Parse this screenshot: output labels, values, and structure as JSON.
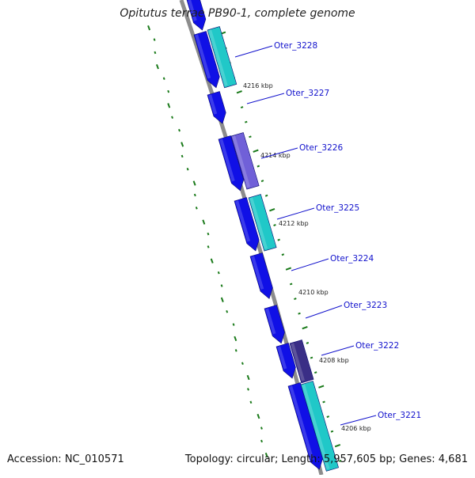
{
  "title": "Opitutus terrae PB90-1, complete genome",
  "footer": {
    "accession": "Accession: NC_010571",
    "summary": "Topology: circular; Length: 5,957,605 bp; Genes: 4,681"
  },
  "colors": {
    "backbone": "#8c8c8c",
    "gene_blue": "#1010e6",
    "gene_cyan": "#20c8c8",
    "gene_lavender": "#7060d8",
    "gene_dark": "#3a2e86",
    "label_line": "#1111cc",
    "tick": "#1a7a1a"
  },
  "genes": [
    {
      "label": "Oter_3228"
    },
    {
      "label": "Oter_3227"
    },
    {
      "label": "Oter_3226"
    },
    {
      "label": "Oter_3225"
    },
    {
      "label": "Oter_3224"
    },
    {
      "label": "Oter_3223"
    },
    {
      "label": "Oter_3222"
    },
    {
      "label": "Oter_3221"
    }
  ],
  "position_marks": [
    {
      "label": "4216 kbp"
    },
    {
      "label": "4214 kbp"
    },
    {
      "label": "4212 kbp"
    },
    {
      "label": "4210 kbp"
    },
    {
      "label": "4208 kbp"
    },
    {
      "label": "4206 kbp"
    }
  ]
}
